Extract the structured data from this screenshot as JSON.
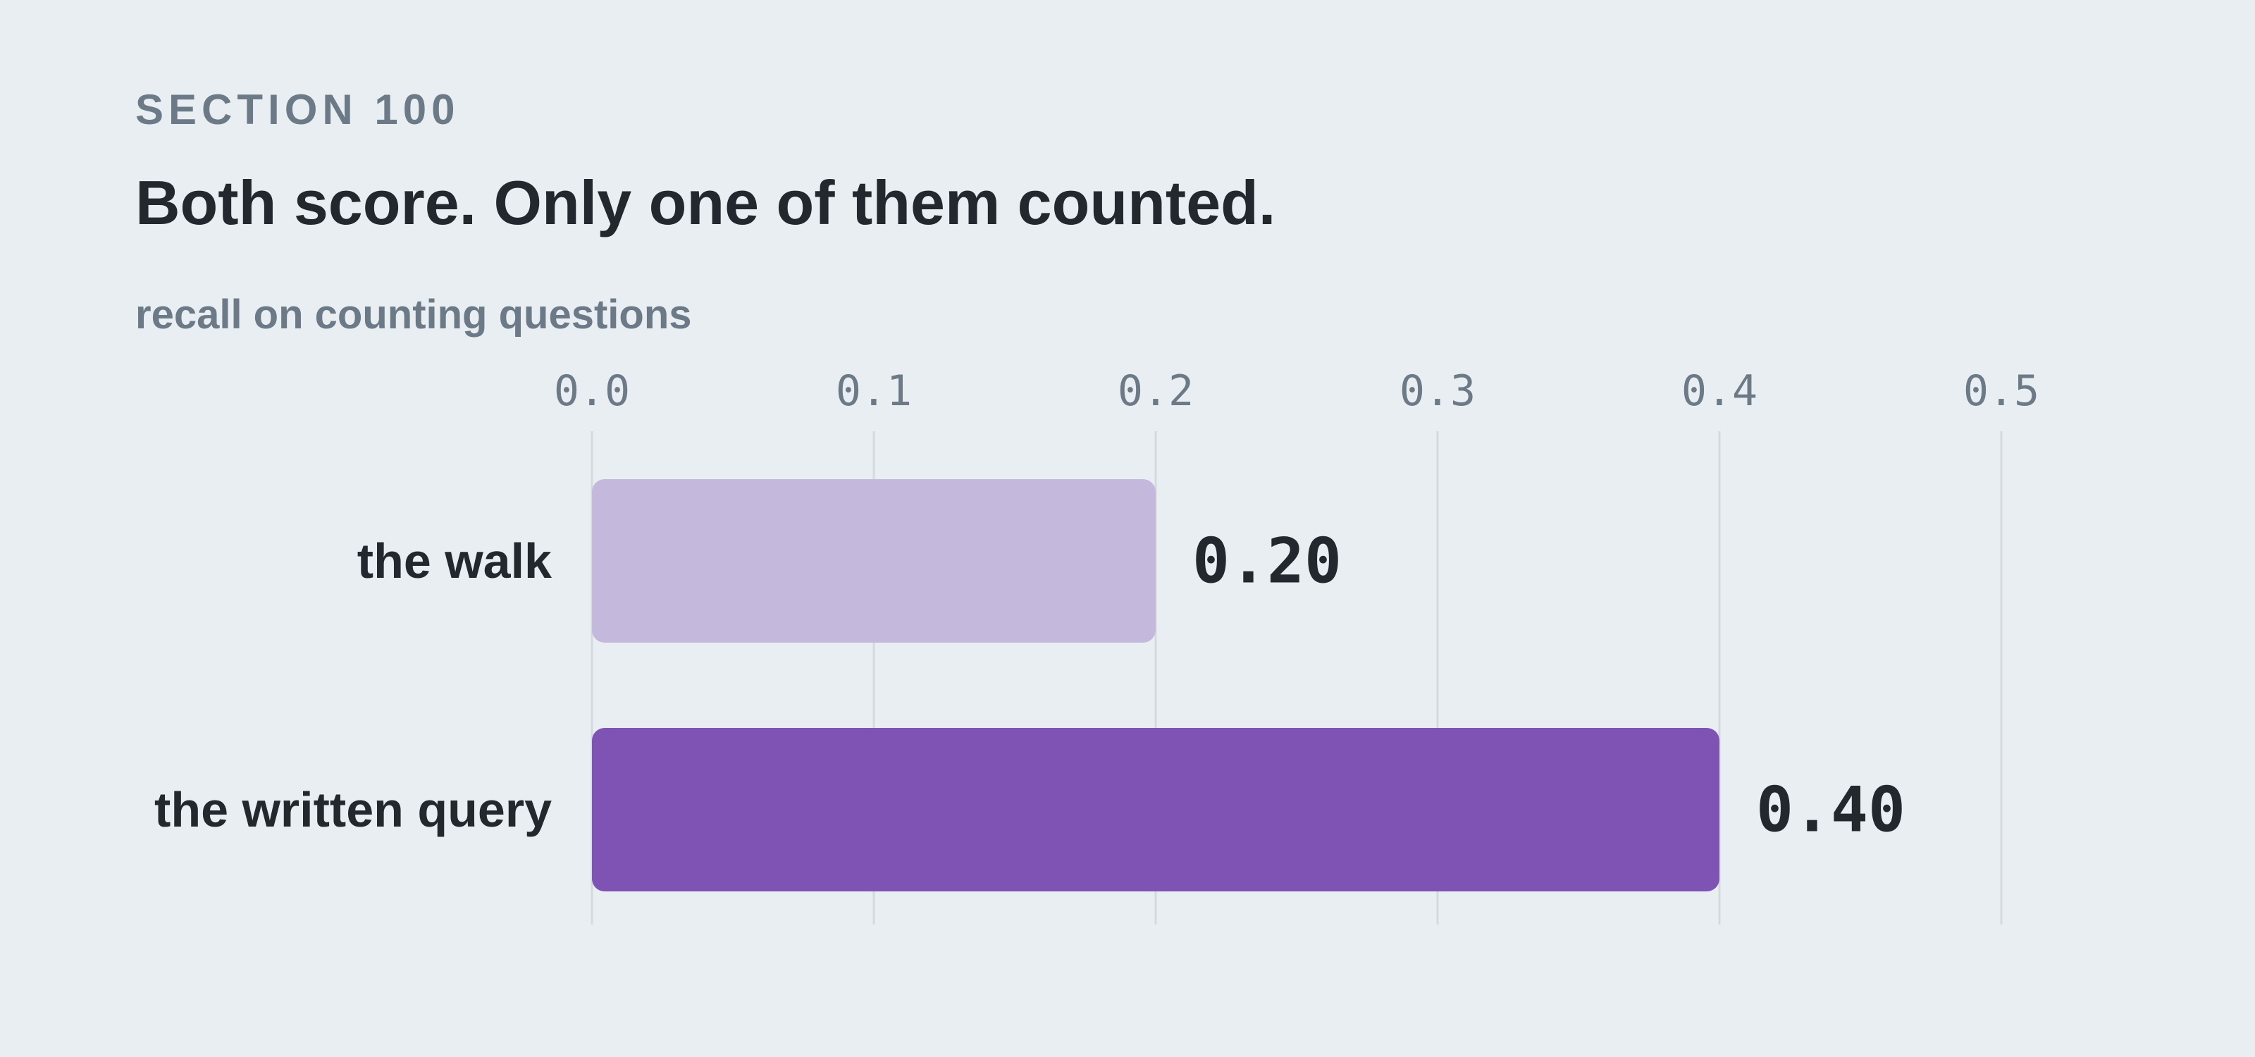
{
  "header": {
    "eyebrow": "SECTION 100",
    "title": "Both score. Only one of them counted.",
    "subtitle": "recall on counting questions"
  },
  "colors": {
    "background": "#e8eef2",
    "bar_light": "#c4b9dc",
    "bar_dark": "#7f53b3",
    "grid": "#d3d9de",
    "text_dark": "#22282d",
    "text_muted": "#6b7a86"
  },
  "chart_data": {
    "type": "bar",
    "orientation": "horizontal",
    "categories": [
      "the walk",
      "the written query"
    ],
    "values": [
      0.2,
      0.4
    ],
    "value_labels": [
      "0.20",
      "0.40"
    ],
    "bar_colors": [
      "#c4b9dc",
      "#7f53b3"
    ],
    "xlim": [
      0,
      0.5
    ],
    "xticks": [
      "0.0",
      "0.1",
      "0.2",
      "0.3",
      "0.4",
      "0.5"
    ],
    "xtick_values": [
      0,
      0.1,
      0.2,
      0.3,
      0.4,
      0.5
    ],
    "xaxis_position": "top",
    "grid": true,
    "legend": false
  }
}
